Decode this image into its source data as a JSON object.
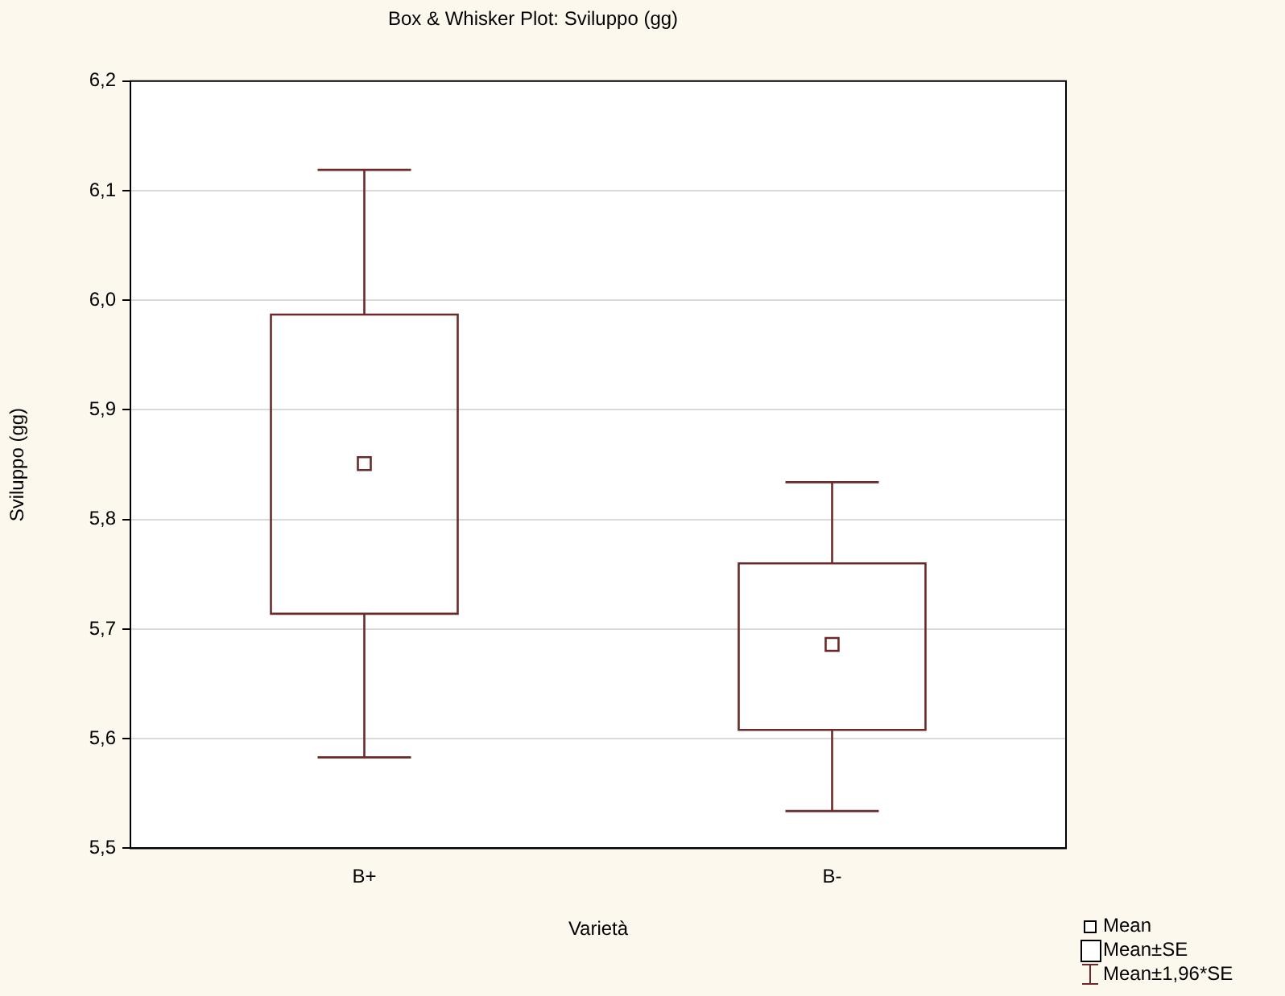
{
  "chart_data": {
    "type": "box",
    "title": "Box & Whisker Plot: Sviluppo (gg)",
    "xlabel": "Varietà",
    "ylabel": "Sviluppo (gg)",
    "categories": [
      "B+",
      "B-"
    ],
    "series": [
      {
        "color": "#6b2a2a",
        "boxes": [
          {
            "low": 5.583,
            "q1": 5.714,
            "median": 5.851,
            "q3": 5.987,
            "high": 6.119
          },
          {
            "low": 5.534,
            "q1": 5.608,
            "median": 5.686,
            "q3": 5.76,
            "high": 5.834
          }
        ]
      }
    ],
    "ylim": [
      5.5,
      6.2
    ],
    "yticks": [
      {
        "value": 5.5,
        "label": "5,5"
      },
      {
        "value": 5.6,
        "label": "5,6"
      },
      {
        "value": 5.7,
        "label": "5,7"
      },
      {
        "value": 5.8,
        "label": "5,8"
      },
      {
        "value": 5.9,
        "label": "5,9"
      },
      {
        "value": 6.0,
        "label": "6,0"
      },
      {
        "value": 6.1,
        "label": "6,1"
      },
      {
        "value": 6.2,
        "label": "6,2"
      }
    ],
    "grid": "y",
    "annotations": [
      "Mean",
      "Mean±SE",
      "Mean±1,96*SE"
    ]
  }
}
